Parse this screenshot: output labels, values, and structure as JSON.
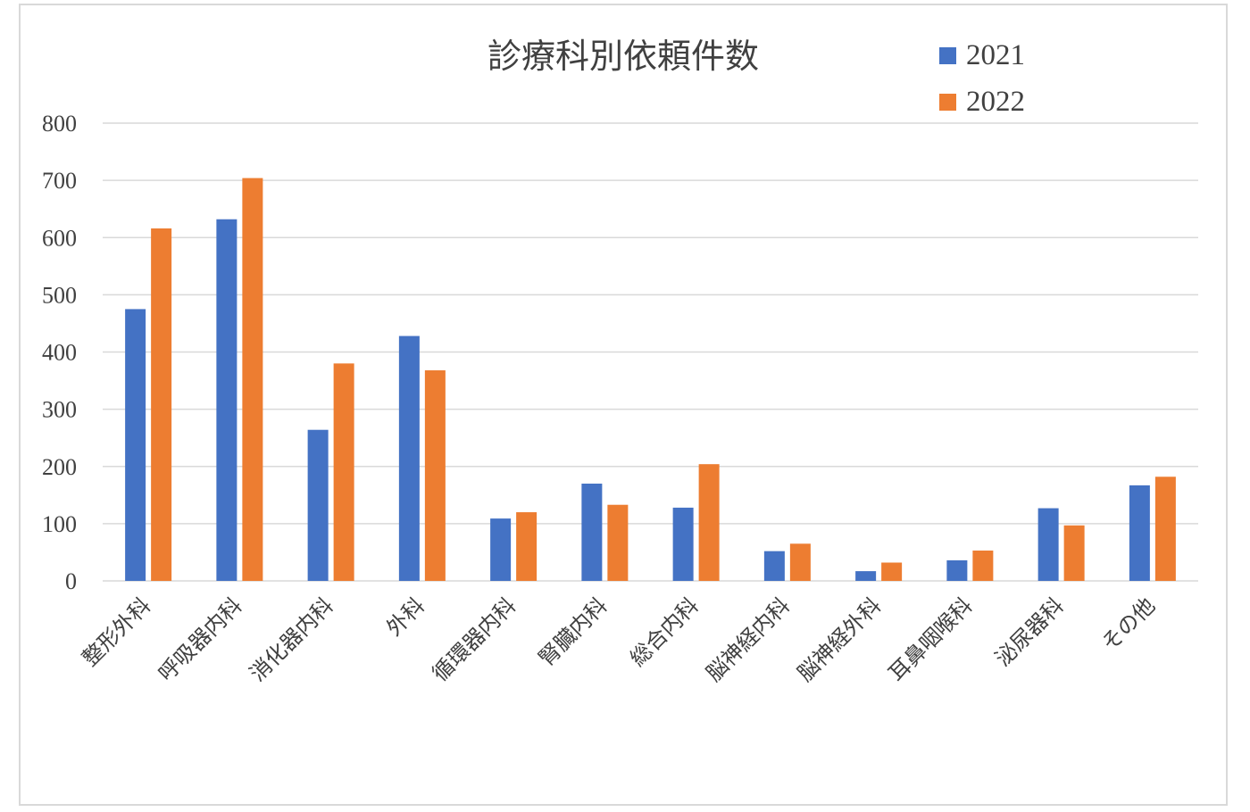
{
  "chart_data": {
    "type": "bar",
    "title": "診療科別依頼件数",
    "categories": [
      "整形外科",
      "呼吸器内科",
      "消化器内科",
      "外科",
      "循環器内科",
      "腎臓内科",
      "総合内科",
      "脳神経内科",
      "脳神経外科",
      "耳鼻咽喉科",
      "泌尿器科",
      "その他"
    ],
    "series": [
      {
        "name": "2021",
        "color": "#4472c4",
        "values": [
          475,
          632,
          264,
          428,
          109,
          170,
          128,
          52,
          17,
          36,
          127,
          167
        ]
      },
      {
        "name": "2022",
        "color": "#ed7d31",
        "values": [
          616,
          704,
          380,
          368,
          120,
          133,
          204,
          65,
          32,
          53,
          97,
          182
        ]
      }
    ],
    "ylim": [
      0,
      800
    ],
    "yticks": [
      0,
      100,
      200,
      300,
      400,
      500,
      600,
      700,
      800
    ],
    "grid": true,
    "legend_position": "top-right"
  }
}
